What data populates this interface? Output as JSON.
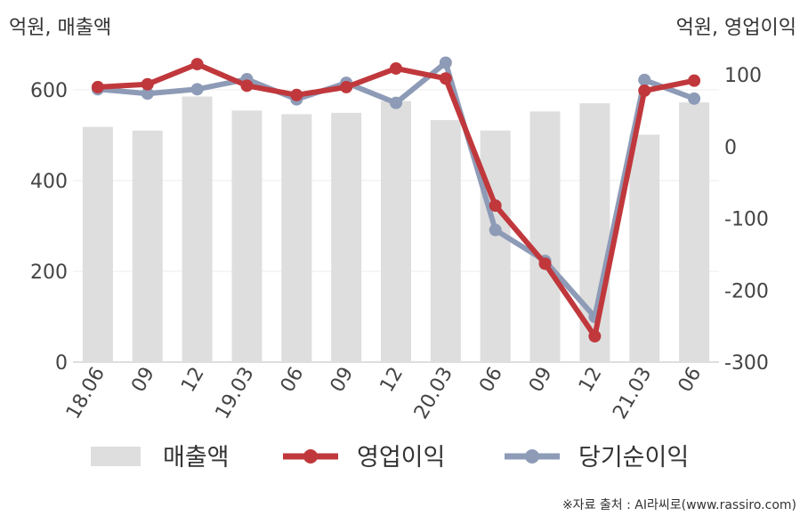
{
  "chart_data": {
    "type": "bar",
    "left_axis_unit": "억원, 매출액",
    "right_axis_unit": "억원, 영업이익",
    "categories": [
      "18.06",
      "09",
      "12",
      "19.03",
      "06",
      "09",
      "12",
      "20.03",
      "06",
      "09",
      "12",
      "21.03",
      "06"
    ],
    "series": [
      {
        "name": "매출액",
        "type": "bar",
        "axis": "left",
        "color": "#dedede",
        "values": [
          518,
          510,
          585,
          554,
          546,
          549,
          575,
          533,
          510,
          552,
          570,
          501,
          572
        ]
      },
      {
        "name": "영업이익",
        "type": "line",
        "axis": "right",
        "color": "#c0383c",
        "values": [
          83,
          87,
          115,
          85,
          72,
          83,
          109,
          95,
          -82,
          -163,
          -264,
          78,
          92
        ]
      },
      {
        "name": "당기순이익",
        "type": "line",
        "axis": "right",
        "color": "#8e9bb7",
        "values": [
          80,
          74,
          80,
          94,
          66,
          89,
          61,
          117,
          -116,
          -159,
          -237,
          93,
          67
        ]
      }
    ],
    "left_ylim": [
      0,
      680
    ],
    "right_ylim": [
      -300,
      130
    ],
    "left_ticks": [
      "0",
      "200",
      "400",
      "600"
    ],
    "right_ticks": [
      "100",
      "0",
      "-100",
      "-200",
      "-300"
    ],
    "grid": true,
    "legend_position": "bottom"
  },
  "source": "※자료 출처 : AI라씨로(www.rassiro.com)"
}
